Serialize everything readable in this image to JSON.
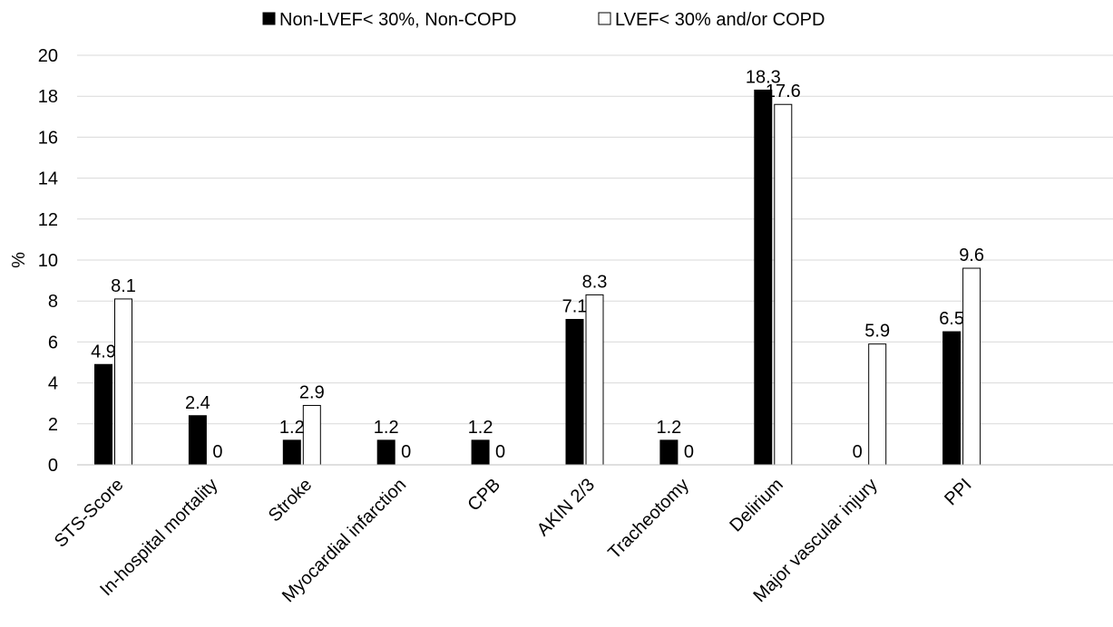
{
  "chart_data": {
    "type": "bar",
    "title": "",
    "xlabel": "",
    "ylabel": "%",
    "ylim": [
      0,
      20
    ],
    "yticks": [
      0,
      2,
      4,
      6,
      8,
      10,
      12,
      14,
      16,
      18,
      20
    ],
    "grid": true,
    "legend_position": "top",
    "categories": [
      "STS-Score",
      "In-hospital mortality",
      "Stroke",
      "Myocardial infarction",
      "CPB",
      "AKIN 2/3",
      "Tracheotomy",
      "Delirium",
      "Major vascular injury",
      "PPI"
    ],
    "series": [
      {
        "name": "Non-LVEF< 30%, Non-COPD",
        "color": "#000000",
        "values": [
          4.9,
          2.4,
          1.2,
          1.2,
          1.2,
          7.1,
          1.2,
          18.3,
          0,
          6.5
        ],
        "labels": [
          "4.9",
          "2.4",
          "1.2",
          "1.2",
          "1.2",
          "7.1",
          "1.2",
          "18.3",
          "0",
          "6.5"
        ]
      },
      {
        "name": "LVEF< 30% and/or COPD",
        "color": "#ffffff",
        "values": [
          8.1,
          0,
          2.9,
          0,
          0,
          8.3,
          0,
          17.6,
          5.9,
          9.6
        ],
        "labels": [
          "8.1",
          "0",
          "2.9",
          "0",
          "0",
          "8.3",
          "0",
          "17.6",
          "5.9",
          "9.6"
        ]
      }
    ]
  }
}
